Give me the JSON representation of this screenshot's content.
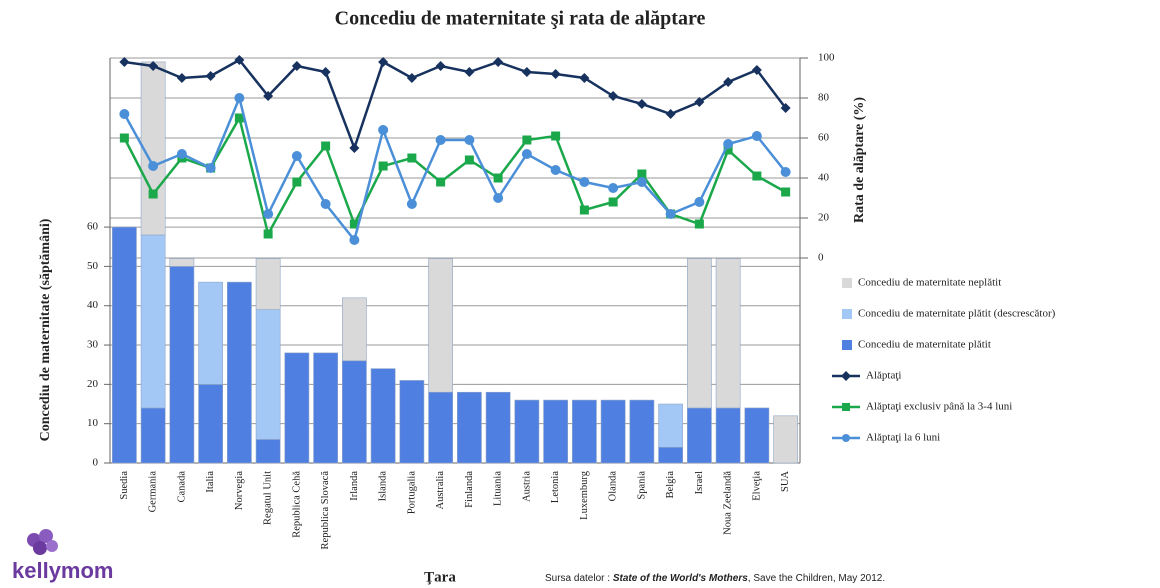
{
  "chart_data": {
    "type": "bar",
    "title": "Concediu de maternitate şi rata de alăptare",
    "x_label": "Ţara",
    "y_label": "Concediu de maternitate (săptămâni)",
    "y2_label": "Rata de alăptare  (%)",
    "categories": [
      "Suedia",
      "Germania",
      "Canada",
      "Italia",
      "Norvegia",
      "Regatul Unit",
      "Republica Cehă",
      "Republica Slovacă",
      "Irlanda",
      "Islanda",
      "Portugalia",
      "Australia",
      "Finlanda",
      "Lituania",
      "Austria",
      "Letonia",
      "Luxemburg",
      "Olanda",
      "Spania",
      "Belgia",
      "Israel",
      "Noua Zeelandă",
      "Elveţia",
      "SUA"
    ],
    "ylim": [
      0,
      103
    ],
    "yticks": [
      0,
      10,
      20,
      30,
      40,
      50,
      60
    ],
    "y2lim": [
      -102.5,
      100
    ],
    "y2ticks": [
      0,
      20,
      40,
      60,
      80,
      100
    ],
    "grid": true,
    "legend_position": "right",
    "series": [
      {
        "name": "Concediu de maternitate plătit",
        "type": "bar",
        "color": "#4f7fe0",
        "values": [
          60,
          14,
          50,
          20,
          46,
          6,
          28,
          28,
          26,
          24,
          21,
          18,
          18,
          18,
          16,
          16,
          16,
          16,
          16,
          4,
          14,
          14,
          14,
          0
        ]
      },
      {
        "name": "Concediu de maternitate plătit (descrescător)",
        "type": "bar",
        "color": "#a3c8f5",
        "values": [
          0,
          44,
          0,
          26,
          0,
          33,
          0,
          0,
          0,
          0,
          0,
          0,
          0,
          0,
          0,
          0,
          0,
          0,
          0,
          11,
          0,
          0,
          0,
          0
        ]
      },
      {
        "name": "Concediu de maternitate neplătit",
        "type": "bar",
        "color": "#d9d9d9",
        "values": [
          0,
          44,
          2,
          0,
          0,
          13,
          0,
          0,
          16,
          0,
          0,
          34,
          0,
          0,
          0,
          0,
          0,
          0,
          0,
          0,
          38,
          38,
          0,
          12
        ]
      },
      {
        "name": "Alăptaţi",
        "type": "line",
        "axis": "y2",
        "color": "#17325e",
        "marker": "diamond",
        "values": [
          98,
          96,
          90,
          91,
          99,
          81,
          96,
          93,
          55,
          98,
          90,
          96,
          93,
          98,
          93,
          92,
          90,
          81,
          77,
          72,
          78,
          88,
          94,
          75
        ]
      },
      {
        "name": "Alăptaţi exclusiv până la 3-4 luni",
        "type": "line",
        "axis": "y2",
        "color": "#1aa84a",
        "marker": "square",
        "values": [
          60,
          32,
          50,
          45,
          70,
          12,
          38,
          56,
          17,
          46,
          50,
          38,
          49,
          40,
          59,
          61,
          24,
          28,
          42,
          22,
          17,
          54,
          41,
          33
        ]
      },
      {
        "name": "Alăptaţi la 6 luni",
        "type": "line",
        "axis": "y2",
        "color": "#4a8fd8",
        "marker": "circle",
        "values": [
          72,
          46,
          52,
          45,
          80,
          22,
          51,
          27,
          9,
          64,
          27,
          59,
          59,
          30,
          52,
          44,
          38,
          35,
          38,
          22,
          28,
          57,
          61,
          43
        ]
      }
    ]
  },
  "source": {
    "prefix": "Sursa datelor : ",
    "work": "State of the World's Mothers",
    "rest": ", Save the Children, May 2012."
  },
  "logo": "kellymom"
}
